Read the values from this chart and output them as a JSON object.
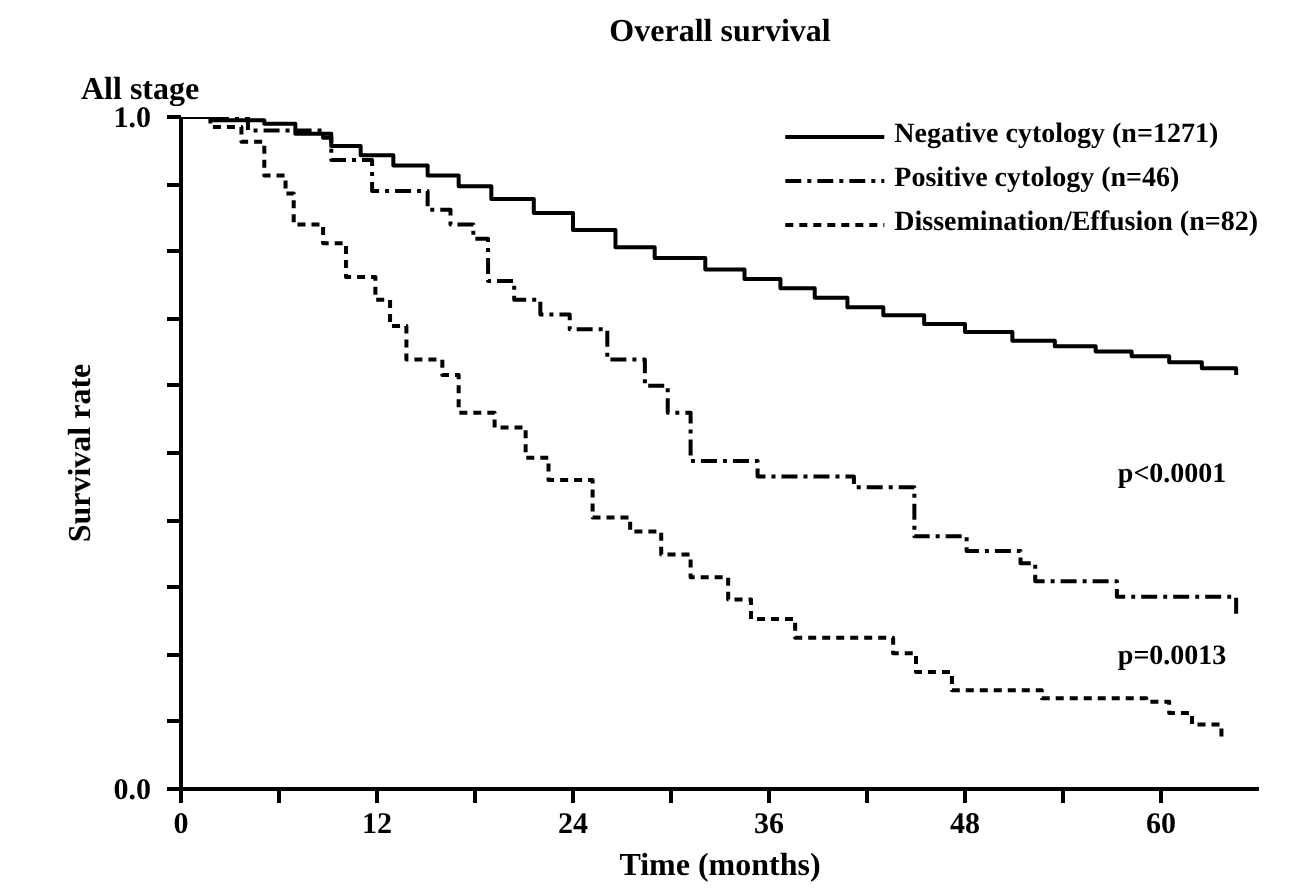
{
  "chart_data": {
    "type": "step",
    "title": "Overall survival",
    "subtitle": "All stage",
    "xlabel": "Time (months)",
    "ylabel": "Survival rate",
    "xlim": [
      0,
      66
    ],
    "ylim": [
      0,
      1
    ],
    "xticks": [
      0,
      {
        "value": 6,
        "label": null
      },
      12,
      {
        "value": 18,
        "label": null
      },
      24,
      {
        "value": 30,
        "label": null
      },
      36,
      {
        "value": 42,
        "label": null
      },
      48,
      {
        "value": 54,
        "label": null
      },
      60
    ],
    "yticks": [
      {
        "value": 0,
        "label": "0.0"
      },
      {
        "value": 0.1,
        "label": null
      },
      {
        "value": 0.2,
        "label": null
      },
      {
        "value": 0.3,
        "label": null
      },
      {
        "value": 0.4,
        "label": null
      },
      {
        "value": 0.5,
        "label": null
      },
      {
        "value": 0.6,
        "label": null
      },
      {
        "value": 0.7,
        "label": null
      },
      {
        "value": 0.8,
        "label": null
      },
      {
        "value": 0.9,
        "label": null
      },
      {
        "value": 1,
        "label": "1.0"
      }
    ],
    "grid": false,
    "legend": "top right",
    "marker": "none",
    "series": [
      {
        "name": "Negative cytology (n=1271)",
        "color": "#000000",
        "line_style": "solid",
        "x": [
          0,
          2,
          5.1,
          7,
          9.2,
          11,
          13,
          15.1,
          17,
          19,
          21.6,
          24,
          26.6,
          29,
          32.1,
          34.5,
          36.7,
          38.8,
          40.8,
          43,
          45.5,
          48,
          50.9,
          53.5,
          56,
          58.2,
          60.5,
          62.5,
          64.6
        ],
        "values": [
          1,
          0.995,
          0.99,
          0.975,
          0.957,
          0.943,
          0.928,
          0.913,
          0.897,
          0.878,
          0.857,
          0.832,
          0.806,
          0.79,
          0.773,
          0.759,
          0.745,
          0.731,
          0.717,
          0.705,
          0.692,
          0.68,
          0.667,
          0.659,
          0.651,
          0.644,
          0.635,
          0.626,
          0.616
        ]
      },
      {
        "name": "Positive cytology (n=46)",
        "color": "#000000",
        "line_style": "dashdot",
        "x": [
          0,
          4.1,
          8.7,
          9.2,
          11.7,
          15.1,
          16.5,
          17.9,
          18.8,
          20.4,
          22,
          23.8,
          26.1,
          28.4,
          29.8,
          31.2,
          35.3,
          41.2,
          44.9,
          48.1,
          51.4,
          52.3,
          57.3,
          64.6
        ],
        "values": [
          1,
          0.98,
          0.969,
          0.936,
          0.89,
          0.862,
          0.84,
          0.819,
          0.756,
          0.728,
          0.706,
          0.684,
          0.639,
          0.6,
          0.56,
          0.488,
          0.465,
          0.449,
          0.376,
          0.354,
          0.336,
          0.309,
          0.286,
          0.258
        ]
      },
      {
        "name": "Dissemination/Effusion (n=82)",
        "color": "#000000",
        "line_style": "dashed",
        "x": [
          0,
          1.8,
          3.7,
          5.1,
          6.4,
          6.9,
          8.7,
          10.1,
          11.9,
          12.8,
          13.8,
          16,
          17,
          19.2,
          21.1,
          22.5,
          25.2,
          27.5,
          29.4,
          31.2,
          33.5,
          34.9,
          37.6,
          43.6,
          45,
          47.2,
          52.7,
          59.1,
          60.5,
          61.9,
          63.7
        ],
        "values": [
          1,
          0.985,
          0.963,
          0.913,
          0.886,
          0.84,
          0.812,
          0.762,
          0.728,
          0.689,
          0.639,
          0.616,
          0.56,
          0.538,
          0.493,
          0.46,
          0.404,
          0.383,
          0.349,
          0.315,
          0.282,
          0.253,
          0.225,
          0.202,
          0.174,
          0.147,
          0.135,
          0.13,
          0.113,
          0.096,
          0.074
        ]
      }
    ],
    "annotations": [
      "p<0.0001",
      "p=0.0013"
    ]
  }
}
